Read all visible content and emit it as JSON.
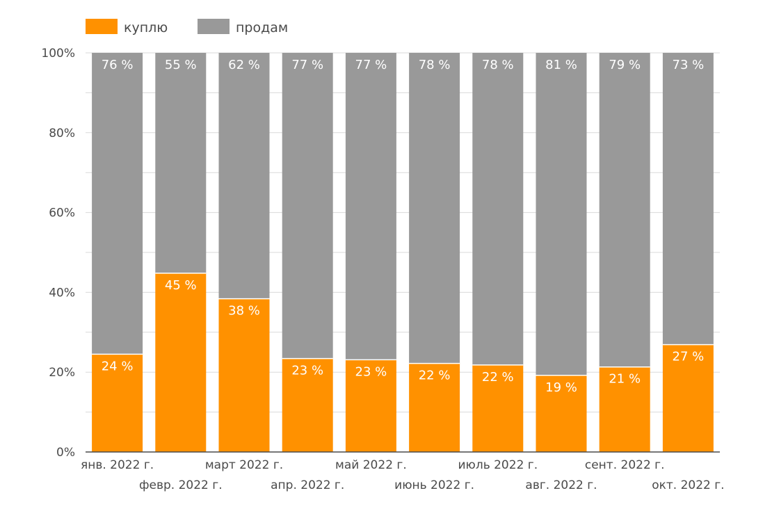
{
  "colors": {
    "buy": "#ff9100",
    "sell": "#999999",
    "grid": "#d9d9d9",
    "axis": "#4a4a4a"
  },
  "chart_data": {
    "type": "bar",
    "stacked": true,
    "categories": [
      "янв. 2022 г.",
      "февр. 2022 г.",
      "март 2022 г.",
      "апр. 2022 г.",
      "май 2022 г.",
      "июнь 2022 г.",
      "июль 2022 г.",
      "авг. 2022 г.",
      "сент. 2022 г.",
      "окт. 2022 г."
    ],
    "series": [
      {
        "name": "куплю",
        "values": [
          24.5,
          44.8,
          38.4,
          23.4,
          23.1,
          22.2,
          21.8,
          19.2,
          21.3,
          26.9
        ],
        "labels": [
          "24 %",
          "45 %",
          "38 %",
          "23 %",
          "23 %",
          "22 %",
          "22 %",
          "19 %",
          "21 %",
          "27 %"
        ]
      },
      {
        "name": "продам",
        "values": [
          75.5,
          55.2,
          61.6,
          76.6,
          76.9,
          77.8,
          78.2,
          80.8,
          78.7,
          73.1
        ],
        "labels": [
          "76 %",
          "55 %",
          "62 %",
          "77 %",
          "77 %",
          "78 %",
          "78 %",
          "81 %",
          "79 %",
          "73 %"
        ]
      }
    ],
    "yticks": [
      "0%",
      "20%",
      "40%",
      "60%",
      "80%",
      "100%"
    ],
    "ylim": [
      0,
      100
    ],
    "legend": "top-left",
    "title": "",
    "xlabel": "",
    "ylabel": ""
  }
}
